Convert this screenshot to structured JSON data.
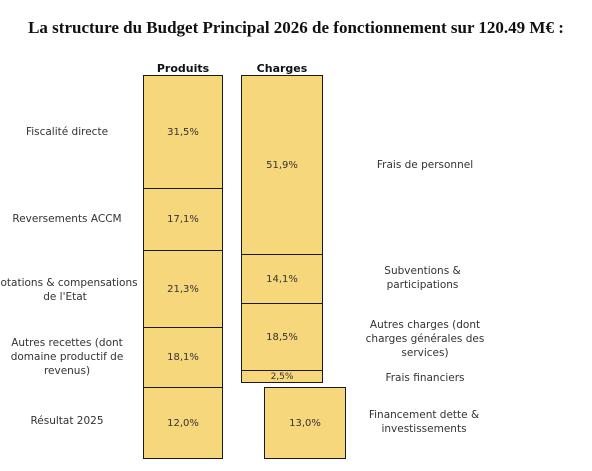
{
  "title": "La structure du Budget Principal 2026 de fonctionnement sur 120.49 M€ :",
  "chart_data": {
    "type": "bar",
    "stacked": true,
    "series": [
      {
        "name": "Produits",
        "segments": [
          {
            "label": "Fiscalité directe",
            "value": 31.5,
            "display": "31,5%"
          },
          {
            "label": "Reversements ACCM",
            "value": 17.1,
            "display": "17,1%"
          },
          {
            "label": "Dotations & compensations de l'Etat",
            "value": 21.3,
            "display": "21,3%"
          },
          {
            "label": "Autres recettes (dont domaine productif de revenus)",
            "value": 18.1,
            "display": "18,1%"
          },
          {
            "label": "Résultat 2025",
            "value": 12.0,
            "display": "12,0%"
          }
        ]
      },
      {
        "name": "Charges",
        "segments": [
          {
            "label": "Frais de personnel",
            "value": 51.9,
            "display": "51,9%"
          },
          {
            "label": "Subventions & participations",
            "value": 14.1,
            "display": "14,1%"
          },
          {
            "label": "Autres charges (dont charges générales des services)",
            "value": 18.5,
            "display": "18,5%"
          },
          {
            "label": "Frais financiers",
            "value": 2.5,
            "display": "2,5%"
          },
          {
            "label": "Financement dette & investissements",
            "value": 13.0,
            "display": "13,0%"
          }
        ]
      }
    ],
    "fill_color": "#f7d77c",
    "border_color": "#1a1a1a"
  }
}
